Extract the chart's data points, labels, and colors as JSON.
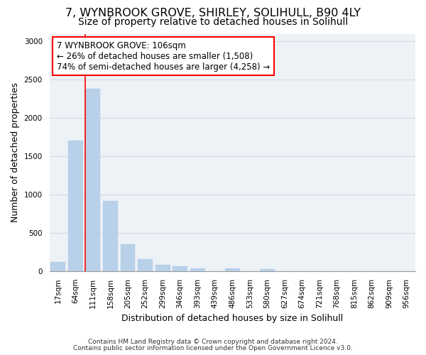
{
  "title": "7, WYNBROOK GROVE, SHIRLEY, SOLIHULL, B90 4LY",
  "subtitle": "Size of property relative to detached houses in Solihull",
  "xlabel": "Distribution of detached houses by size in Solihull",
  "ylabel": "Number of detached properties",
  "footnote1": "Contains HM Land Registry data © Crown copyright and database right 2024.",
  "footnote2": "Contains public sector information licensed under the Open Government Licence v3.0.",
  "bar_labels": [
    "17sqm",
    "64sqm",
    "111sqm",
    "158sqm",
    "205sqm",
    "252sqm",
    "299sqm",
    "346sqm",
    "393sqm",
    "439sqm",
    "486sqm",
    "533sqm",
    "580sqm",
    "627sqm",
    "674sqm",
    "721sqm",
    "768sqm",
    "815sqm",
    "862sqm",
    "909sqm",
    "956sqm"
  ],
  "bar_values": [
    120,
    1700,
    2380,
    920,
    355,
    155,
    85,
    60,
    40,
    0,
    35,
    0,
    30,
    0,
    0,
    0,
    0,
    0,
    0,
    0,
    0
  ],
  "bar_color": "#b8d0e8",
  "bar_edge_color": "#b8d0e8",
  "red_line_bar_index": 2,
  "annotation_line1": "7 WYNBROOK GROVE: 106sqm",
  "annotation_line2": "← 26% of detached houses are smaller (1,508)",
  "annotation_line3": "74% of semi-detached houses are larger (4,258) →",
  "annotation_box_color": "white",
  "annotation_box_edge_color": "red",
  "red_line_color": "red",
  "ylim": [
    0,
    3100
  ],
  "yticks": [
    0,
    500,
    1000,
    1500,
    2000,
    2500,
    3000
  ],
  "grid_color": "#d0d8e0",
  "bg_color": "#edf2f7",
  "title_fontsize": 11.5,
  "subtitle_fontsize": 10,
  "axis_label_fontsize": 9,
  "tick_fontsize": 7.5,
  "annotation_fontsize": 8.5,
  "footnote_fontsize": 6.5
}
